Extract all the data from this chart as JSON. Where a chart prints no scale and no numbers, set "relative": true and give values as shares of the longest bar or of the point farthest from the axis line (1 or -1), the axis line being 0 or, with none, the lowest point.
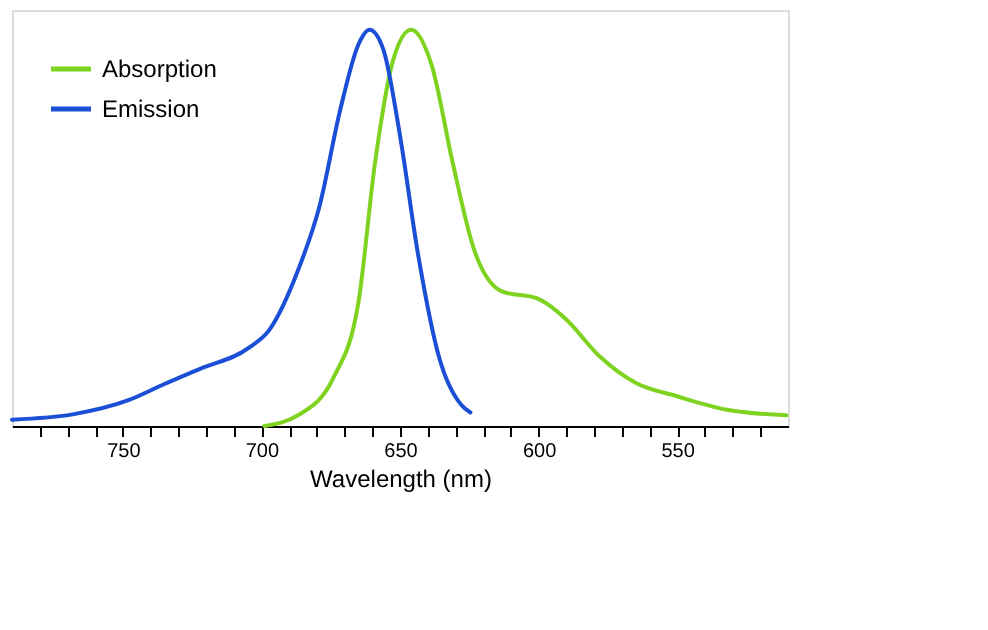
{
  "chart_data": {
    "type": "line",
    "xlabel": "Wavelength (nm)",
    "relative": true,
    "xlim": [
      790,
      510
    ],
    "xticks": [
      {
        "value": 780,
        "label": null
      },
      {
        "value": 770,
        "label": null
      },
      {
        "value": 760,
        "label": null
      },
      750,
      {
        "value": 740,
        "label": null
      },
      {
        "value": 730,
        "label": null
      },
      {
        "value": 720,
        "label": null
      },
      {
        "value": 710,
        "label": null
      },
      700,
      {
        "value": 690,
        "label": null
      },
      {
        "value": 680,
        "label": null
      },
      {
        "value": 670,
        "label": null
      },
      {
        "value": 660,
        "label": null
      },
      650,
      {
        "value": 640,
        "label": null
      },
      {
        "value": 630,
        "label": null
      },
      {
        "value": 620,
        "label": null
      },
      {
        "value": 610,
        "label": null
      },
      600,
      {
        "value": 590,
        "label": null
      },
      {
        "value": 580,
        "label": null
      },
      {
        "value": 570,
        "label": null
      },
      {
        "value": 560,
        "label": null
      },
      550,
      {
        "value": 540,
        "label": null
      },
      {
        "value": 530,
        "label": null
      },
      {
        "value": 520,
        "label": null
      }
    ],
    "legend": "top left",
    "grid": false,
    "series": [
      {
        "name": "Absorption",
        "color": "#7ed321",
        "x": [
          699,
          686.8,
          674,
          665,
          659,
          652.5,
          646,
          638.5,
          631,
          623.4,
          613,
          600.5,
          590.3,
          578,
          565,
          550,
          532,
          510.6
        ],
        "values": [
          0,
          0.027,
          0.122,
          0.312,
          0.665,
          0.923,
          1.0,
          0.909,
          0.665,
          0.448,
          0.339,
          0.322,
          0.271,
          0.176,
          0.109,
          0.075,
          0.041,
          0.027
        ]
      },
      {
        "name": "Emission",
        "color": "#1a4fd6",
        "x": [
          790,
          767.6,
          748,
          735,
          722,
          704.6,
          697,
          686.8,
          679,
          671.5,
          665,
          661,
          656,
          650,
          643.5,
          636,
          628,
          624.6
        ],
        "values": [
          0.016,
          0.03,
          0.065,
          0.106,
          0.145,
          0.197,
          0.244,
          0.393,
          0.556,
          0.8,
          0.963,
          1.0,
          0.95,
          0.733,
          0.434,
          0.176,
          0.054,
          0.034
        ]
      }
    ]
  }
}
